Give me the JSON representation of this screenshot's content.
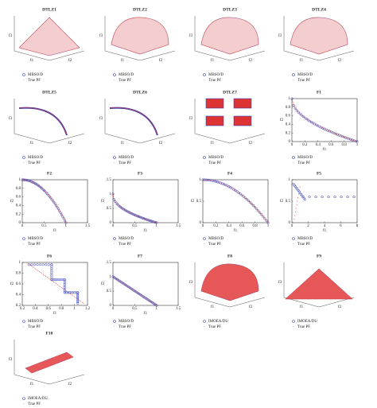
{
  "panels": [
    {
      "title": "DTLZ1",
      "type": "3d",
      "legend": [
        "MBSO/D",
        "True PF"
      ],
      "axes": [
        "f1",
        "f2",
        "f3"
      ]
    },
    {
      "title": "DTLZ2",
      "type": "3d",
      "legend": [
        "MBSO/D",
        "True PF"
      ],
      "axes": [
        "f1",
        "f2",
        "f3"
      ]
    },
    {
      "title": "DTLZ3",
      "type": "3d",
      "legend": [
        "MBSO/D",
        "True PF"
      ],
      "axes": [
        "f1",
        "f2",
        "f3"
      ]
    },
    {
      "title": "DTLZ4",
      "type": "3d",
      "legend": [
        "MBSO/D",
        "True PF"
      ],
      "axes": [
        "f1",
        "f2",
        "f3"
      ]
    },
    {
      "title": "DTLZ5",
      "type": "3d",
      "legend": [
        "MBSO/D",
        "True PF"
      ],
      "axes": [
        "f1",
        "f2",
        "f3"
      ]
    },
    {
      "title": "DTLZ6",
      "type": "3d",
      "legend": [
        "MBSO/D",
        "True PF"
      ],
      "axes": [
        "f1",
        "f2",
        "f3"
      ]
    },
    {
      "title": "DTLZ7",
      "type": "3d",
      "legend": [
        "MBSO/D",
        "True PF"
      ],
      "axes": [
        "f1",
        "f2",
        "f3"
      ]
    },
    {
      "title": "F1",
      "type": "2d",
      "legend": [
        "MBSO/D",
        "True PF"
      ],
      "xlabel": "f1",
      "ylabel": "f2",
      "xticks": [
        0,
        0.2,
        0.4,
        0.6,
        0.8,
        1
      ],
      "yticks": [
        0,
        0.2,
        0.4,
        0.6,
        0.8,
        1
      ]
    },
    {
      "title": "F2",
      "type": "2d",
      "legend": [
        "MBSO/D",
        "True PF"
      ],
      "xlabel": "f1",
      "ylabel": "f2",
      "xticks": [
        0,
        0.5,
        1,
        1.5
      ],
      "yticks": [
        0,
        0.2,
        0.4,
        0.6,
        0.8,
        1
      ]
    },
    {
      "title": "F3",
      "type": "2d",
      "legend": [
        "MBSO/D",
        "True PF"
      ],
      "xlabel": "f1",
      "ylabel": "f2",
      "xticks": [
        0,
        0.5,
        1,
        1.5
      ],
      "yticks": [
        0,
        0.5,
        1,
        1.5
      ]
    },
    {
      "title": "F4",
      "type": "2d",
      "legend": [
        "MBSO/D",
        "True PF"
      ],
      "xlabel": "f1",
      "ylabel": "f2",
      "xticks": [
        0,
        0.2,
        0.4,
        0.6,
        0.8,
        1
      ],
      "yticks": [
        0,
        0.5,
        1
      ]
    },
    {
      "title": "F5",
      "type": "2d",
      "legend": [
        "MBSO/D",
        "True PF"
      ],
      "xlabel": "f1",
      "ylabel": "f2",
      "xticks": [
        0,
        2,
        4,
        6,
        8
      ],
      "yticks": [
        0,
        0.5,
        1
      ]
    },
    {
      "title": "F6",
      "type": "2d",
      "legend": [
        "MBSO/D",
        "True PF"
      ],
      "xlabel": "f1",
      "ylabel": "f2",
      "xticks": [
        0.2,
        0.4,
        0.6,
        0.8,
        1,
        1.2
      ],
      "yticks": [
        0.2,
        0.4,
        0.6,
        0.8,
        1
      ]
    },
    {
      "title": "F7",
      "type": "2d",
      "legend": [
        "MBSO/D",
        "True PF"
      ],
      "xlabel": "f1",
      "ylabel": "f2",
      "xticks": [
        0,
        0.5,
        1,
        1.5
      ],
      "yticks": [
        0,
        0.5,
        1,
        1.5
      ]
    },
    {
      "title": "F8",
      "type": "3d",
      "legend": [
        "IMOEA/DU",
        "True PF"
      ],
      "axes": [
        "f1",
        "f2",
        "f3"
      ]
    },
    {
      "title": "F9",
      "type": "3d",
      "legend": [
        "IMOEA/DU",
        "True PF"
      ],
      "axes": [
        "f1",
        "f2",
        "f3"
      ]
    },
    {
      "title": "F10",
      "type": "3d",
      "legend": [
        "IMOEA/DU",
        "True PF"
      ],
      "axes": [
        "f1",
        "f2",
        "f3"
      ]
    }
  ]
}
